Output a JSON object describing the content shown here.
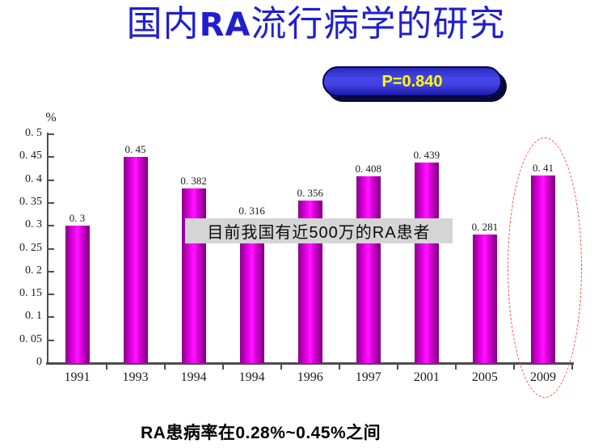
{
  "title": {
    "pre": "国内",
    "ra": "RA",
    "post": "流行病学的研究"
  },
  "badge": {
    "label": "P=0.840"
  },
  "overlay": {
    "text": "目前我国有近500万的RA患者"
  },
  "caption": {
    "text": "RA患病率在0.28%~0.45%之间"
  },
  "chart_data": {
    "type": "bar",
    "title": "国内RA流行病学的研究",
    "categories": [
      "1991",
      "1993",
      "1994",
      "1994",
      "1996",
      "1997",
      "2001",
      "2005",
      "2009"
    ],
    "values": [
      0.3,
      0.45,
      0.382,
      0.316,
      0.356,
      0.408,
      0.439,
      0.281,
      0.41
    ],
    "value_labels": [
      "0. 3",
      "0. 45",
      "0. 382",
      "0. 316",
      "0. 356",
      "0. 408",
      "0. 439",
      "0. 281",
      "0. 41"
    ],
    "xlabel": "",
    "ylabel": "%",
    "ylim": [
      0,
      0.5
    ],
    "y_ticks": [
      0,
      0.05,
      0.1,
      0.15,
      0.2,
      0.25,
      0.3,
      0.35,
      0.4,
      0.45,
      0.5
    ],
    "y_tick_labels": [
      "0",
      "0. 05",
      "0. 1",
      "0. 15",
      "0. 2",
      "0. 25",
      "0. 3",
      "0. 35",
      "0. 4",
      "0. 45",
      "0. 5"
    ],
    "grid": false,
    "legend": false,
    "bar_color_center": "#FF00FF",
    "bar_color_edge": "#860086",
    "annotation": "目前我国有近500万的RA患者",
    "p_value_label": "P=0.840",
    "highlight": {
      "category": "2009",
      "category_index": 8,
      "style": "red-dashed-ellipse"
    }
  },
  "colors": {
    "title_blue": "#1F1FCE",
    "badge_blue": "#3C3CDD",
    "badge_shadow_navy": "#0A0A35",
    "badge_text_yellow": "#FFFF00",
    "bar_magenta": "#FF00FF",
    "overlay_gray": "#D5D5D5",
    "ellipse_red": "#FF4B3A",
    "axis_gray": "#4D4D4D"
  }
}
